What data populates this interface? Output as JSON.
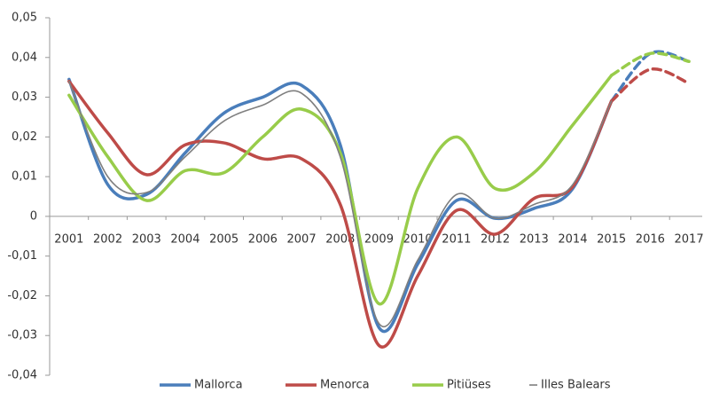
{
  "chart_data": {
    "type": "line",
    "categories": [
      "2001",
      "2002",
      "2003",
      "2004",
      "2005",
      "2006",
      "2007",
      "2008",
      "2009",
      "2010",
      "2011",
      "2012",
      "2013",
      "2014",
      "2015",
      "2016",
      "2017"
    ],
    "series": [
      {
        "name": "Mallorca",
        "color": "#4a7ebb",
        "dashed_after": "2015",
        "values": [
          0.0345,
          0.008,
          0.0055,
          0.016,
          0.026,
          0.03,
          0.033,
          0.018,
          -0.028,
          -0.012,
          0.004,
          -0.0005,
          0.002,
          0.007,
          0.029,
          0.041,
          0.039
        ]
      },
      {
        "name": "Menorca",
        "color": "#be4b48",
        "dashed_after": "2015",
        "values": [
          0.034,
          0.021,
          0.0105,
          0.018,
          0.0185,
          0.0145,
          0.0145,
          0.003,
          -0.0325,
          -0.015,
          0.0015,
          -0.0045,
          0.0045,
          0.0075,
          0.029,
          0.037,
          0.0335
        ]
      },
      {
        "name": "Pitiüses",
        "color": "#98cc4a",
        "dashed_after": "2015",
        "values": [
          0.0305,
          0.015,
          0.004,
          0.0115,
          0.011,
          0.02,
          0.027,
          0.016,
          -0.022,
          0.007,
          0.02,
          0.007,
          0.011,
          0.023,
          0.0355,
          0.041,
          0.039
        ]
      },
      {
        "name": "Illes Balears",
        "color": "#7f7f7f",
        "values": [
          0.034,
          0.01,
          0.006,
          0.015,
          0.024,
          0.028,
          0.031,
          0.015,
          -0.027,
          -0.011,
          0.0055,
          -0.0005,
          0.003,
          0.008,
          0.029,
          null,
          null
        ]
      }
    ],
    "ylim": [
      -0.04,
      0.05
    ],
    "yticks": [
      {
        "value": 0.05,
        "label": "0,05"
      },
      {
        "value": 0.04,
        "label": "0,04"
      },
      {
        "value": 0.03,
        "label": "0,03"
      },
      {
        "value": 0.02,
        "label": "0,02"
      },
      {
        "value": 0.01,
        "label": "0,01"
      },
      0,
      {
        "value": -0.01,
        "label": "-0,01"
      },
      {
        "value": -0.02,
        "label": "-0,02"
      },
      {
        "value": -0.03,
        "label": "-0,03"
      },
      {
        "value": -0.04,
        "label": "-0,04"
      }
    ],
    "grid": false,
    "legend": "bottom"
  }
}
